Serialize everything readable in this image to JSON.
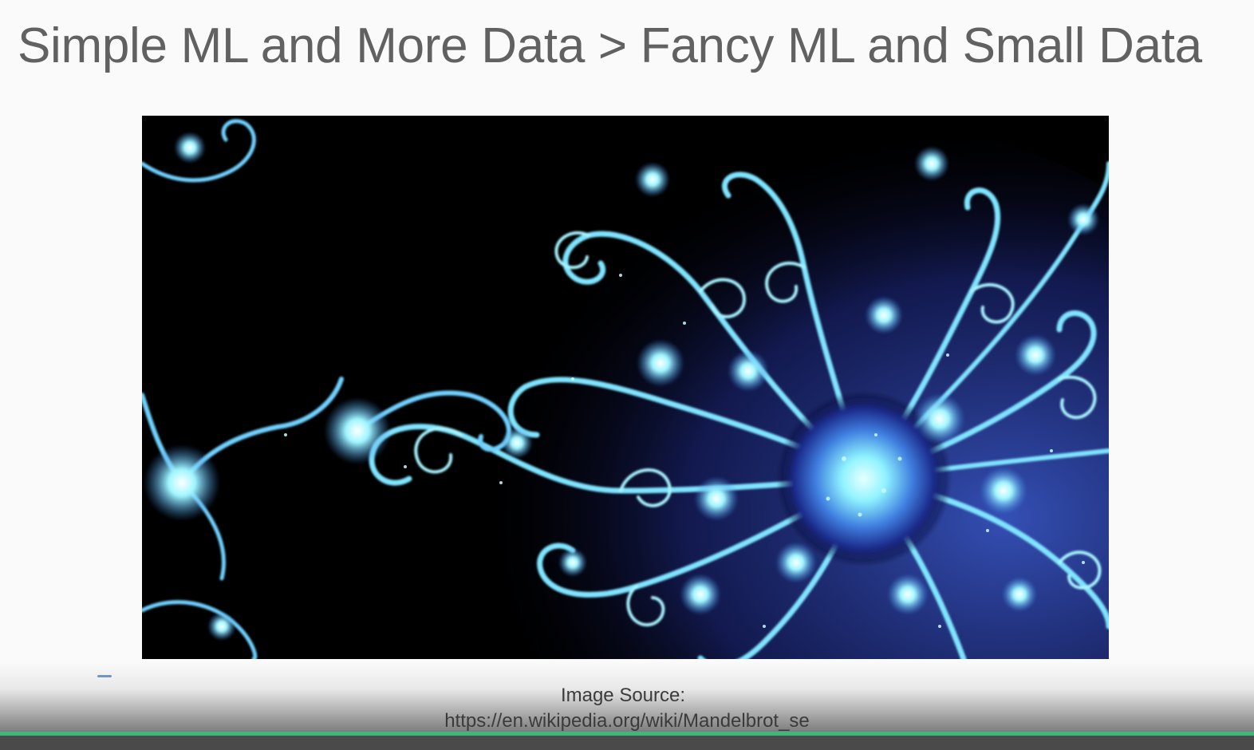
{
  "slide": {
    "title": "Simple ML and More Data > Fancy ML and Small Data",
    "caption_line1": "Image Source:",
    "caption_line2": "https://en.wikipedia.org/wiki/Mandelbrot_se"
  },
  "figure": {
    "subject": "fractal-image"
  },
  "player": {
    "progress_fraction": 1.0,
    "accent_color": "#3fb67a"
  }
}
